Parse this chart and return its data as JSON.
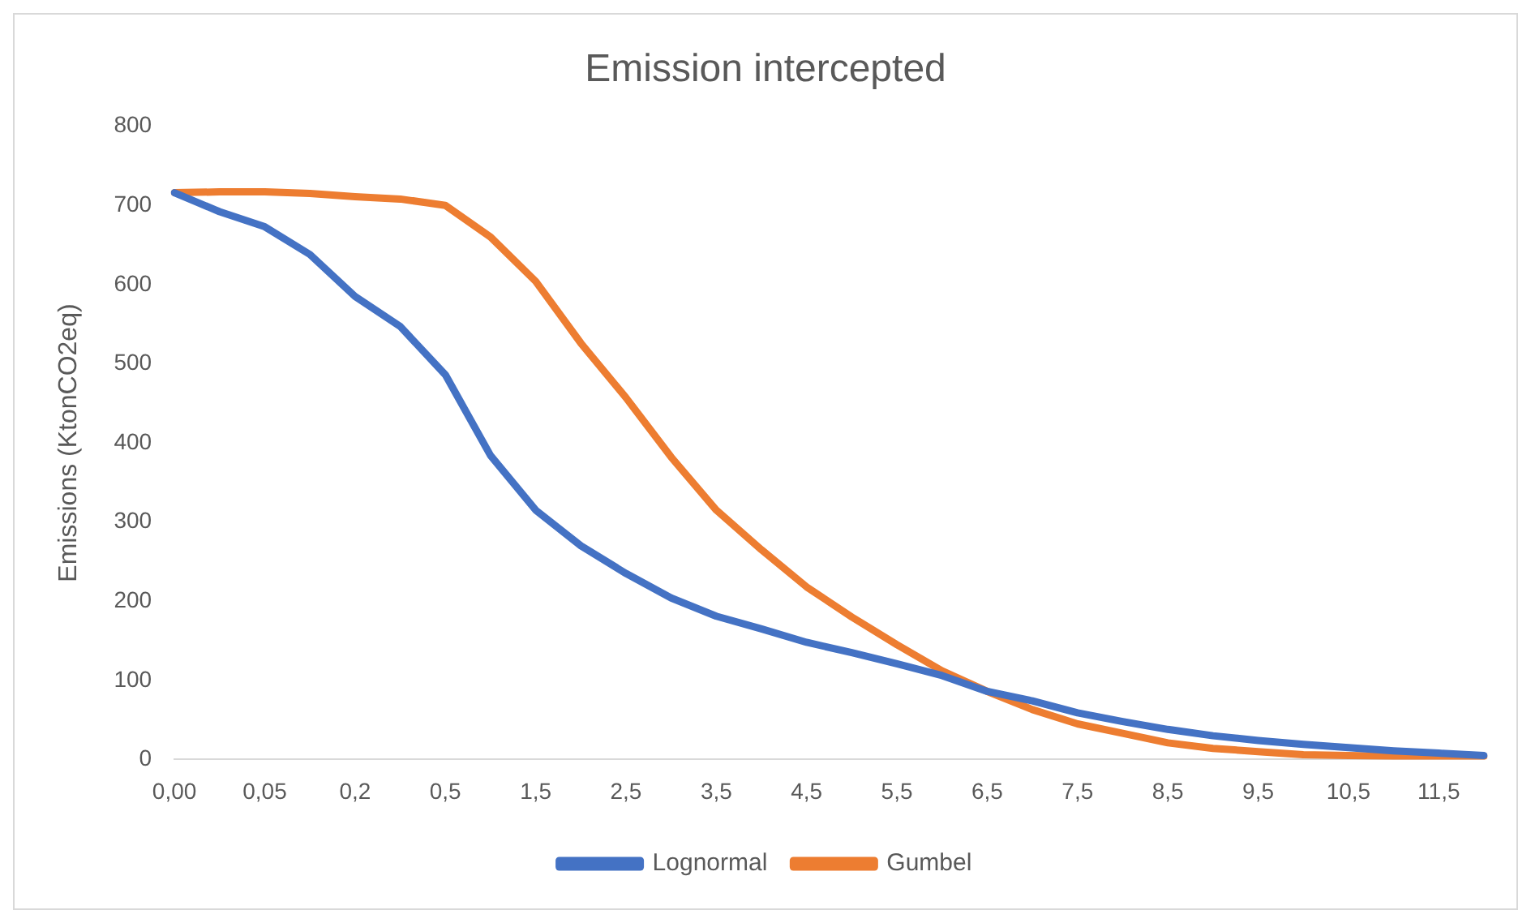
{
  "chart_data": {
    "type": "line",
    "title": "Emission intercepted",
    "ylabel": "Emissions (KtonCO2eq)",
    "categories": [
      "0,00",
      null,
      "0,05",
      null,
      "0,2",
      null,
      "0,5",
      null,
      "1,5",
      null,
      "2,5",
      null,
      "3,5",
      null,
      "4,5",
      null,
      "5,5",
      null,
      "6,5",
      null,
      "7,5",
      null,
      "8,5",
      null,
      "9,5",
      null,
      "10,5",
      null,
      "11,5",
      null
    ],
    "series": [
      {
        "name": "Lognormal",
        "color": "#4472c4",
        "values": [
          716,
          692,
          673,
          638,
          585,
          547,
          486,
          384,
          315,
          270,
          235,
          204,
          181,
          165,
          148,
          135,
          121,
          106,
          86,
          74,
          59,
          48,
          38,
          30,
          24,
          19,
          15,
          11,
          8,
          5
        ]
      },
      {
        "name": "Gumbel",
        "color": "#ed7d31",
        "values": [
          716,
          717,
          717,
          715,
          711,
          708,
          700,
          660,
          604,
          526,
          457,
          382,
          315,
          265,
          218,
          180,
          145,
          112,
          86,
          63,
          45,
          33,
          21,
          14,
          10,
          6,
          5,
          4,
          4,
          4
        ]
      }
    ],
    "ylim": [
      0,
      800
    ],
    "yticks": [
      0,
      100,
      200,
      300,
      400,
      500,
      600,
      700,
      800
    ],
    "grid": false,
    "legend": "bottom",
    "marker": "none",
    "line_style": "solid"
  }
}
